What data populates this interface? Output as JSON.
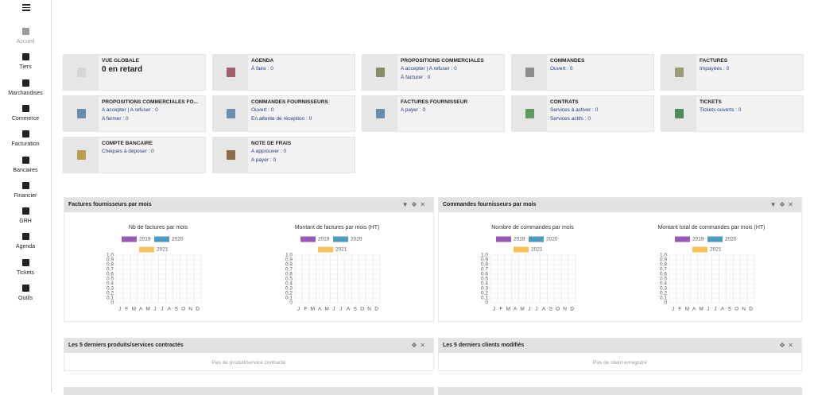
{
  "sidebar": {
    "items": [
      "Accueil",
      "Tiers",
      "Marchandises",
      "Commerce",
      "Facturation",
      "Bancaires",
      "Financier",
      "GRH",
      "Agenda",
      "Tickets",
      "Outils"
    ]
  },
  "boxes": [
    {
      "title": "VUE GLOBALE",
      "lines": [
        "0 en retard"
      ]
    },
    {
      "title": "AGENDA",
      "lines": [
        "À faire : 0"
      ]
    },
    {
      "title": "PROPOSITIONS COMMERCIALES",
      "lines": [
        "A accepter | A refuser : 0",
        "À facturer : 0"
      ]
    },
    {
      "title": "COMMANDES",
      "lines": [
        "Ouvert : 0"
      ]
    },
    {
      "title": "FACTURES",
      "lines": [
        "Impayées : 0"
      ]
    },
    {
      "title": "PROPOSITIONS COMMERCIALES FO...",
      "lines": [
        "A accepter | A refuser : 0",
        "A fermer : 0"
      ]
    },
    {
      "title": "COMMANDES FOURNISSEURS",
      "lines": [
        "Ouvert : 0",
        "En attente de réception : 0"
      ]
    },
    {
      "title": "FACTURES FOURNISSEUR",
      "lines": [
        "A payer : 0"
      ]
    },
    {
      "title": "CONTRATS",
      "lines": [
        "Services à activer : 0",
        "Services actifs : 0"
      ]
    },
    {
      "title": "TICKETS",
      "lines": [
        "Tickets ouverts : 0"
      ]
    },
    {
      "title": "COMPTE BANCAIRE",
      "lines": [
        "Chèques à déposer : 0"
      ]
    },
    {
      "title": "NOTE DE FRAIS",
      "lines": [
        "A approuver : 0",
        "A payer : 0"
      ]
    }
  ],
  "widgets": [
    {
      "title": "Factures fournisseurs par mois",
      "chart_data": [
        {
          "type": "bar",
          "title": "Nb de factures par mois",
          "categories": [
            "J",
            "F",
            "M",
            "A",
            "M",
            "J",
            "J",
            "A",
            "S",
            "O",
            "N",
            "D"
          ],
          "series": [
            {
              "name": "2019",
              "color": "#9b59b6"
            },
            {
              "name": "2020",
              "color": "#4a9cc0"
            },
            {
              "name": "2021",
              "color": "#f5c25a"
            }
          ],
          "ylim": [
            0,
            1
          ],
          "yticks": [
            0,
            0.1,
            0.2,
            0.3,
            0.4,
            0.5,
            0.6,
            0.7,
            0.8,
            0.9,
            {
              "value": 1,
              "label": "1.0"
            }
          ],
          "grid": true
        },
        {
          "type": "bar",
          "title": "Montant de factures par mois (HT)",
          "categories": [
            "J",
            "F",
            "M",
            "A",
            "M",
            "J",
            "J",
            "A",
            "S",
            "O",
            "N",
            "D"
          ],
          "series": [
            {
              "name": "2019",
              "color": "#9b59b6"
            },
            {
              "name": "2020",
              "color": "#4a9cc0"
            },
            {
              "name": "2021",
              "color": "#f5c25a"
            }
          ],
          "ylim": [
            0,
            1
          ],
          "yticks": [
            0,
            0.1,
            0.2,
            0.3,
            0.4,
            0.5,
            0.6,
            0.7,
            0.8,
            0.9,
            {
              "value": 1,
              "label": "1.0"
            }
          ],
          "grid": true
        }
      ]
    },
    {
      "title": "Commandes fournisseurs par mois",
      "chart_data": [
        {
          "type": "bar",
          "title": "Nombre de commandes par mois",
          "categories": [
            "J",
            "F",
            "M",
            "A",
            "M",
            "J",
            "J",
            "A",
            "S",
            "O",
            "N",
            "D"
          ],
          "series": [
            {
              "name": "2019",
              "color": "#9b59b6"
            },
            {
              "name": "2020",
              "color": "#4a9cc0"
            },
            {
              "name": "2021",
              "color": "#f5c25a"
            }
          ],
          "ylim": [
            0,
            1
          ],
          "yticks": [
            0,
            0.1,
            0.2,
            0.3,
            0.4,
            0.5,
            0.6,
            0.7,
            0.8,
            0.9,
            {
              "value": 1,
              "label": "1.0"
            }
          ],
          "grid": true
        },
        {
          "type": "bar",
          "title": "Montant total de commandes par mois (HT)",
          "categories": [
            "J",
            "F",
            "M",
            "A",
            "M",
            "J",
            "J",
            "A",
            "S",
            "O",
            "N",
            "D"
          ],
          "series": [
            {
              "name": "2019",
              "color": "#9b59b6"
            },
            {
              "name": "2020",
              "color": "#4a9cc0"
            },
            {
              "name": "2021",
              "color": "#f5c25a"
            }
          ],
          "ylim": [
            0,
            1
          ],
          "yticks": [
            0,
            0.1,
            0.2,
            0.3,
            0.4,
            0.5,
            0.6,
            0.7,
            0.8,
            0.9,
            {
              "value": 1,
              "label": "1.0"
            }
          ],
          "grid": true
        }
      ]
    }
  ],
  "lists": [
    {
      "title": "Les 5 derniers produits/services contractés",
      "empty": "Pas de produit/service contracté"
    },
    {
      "title": "Les 5 derniers clients modifiés",
      "empty": "Pas de client enregistré"
    }
  ]
}
